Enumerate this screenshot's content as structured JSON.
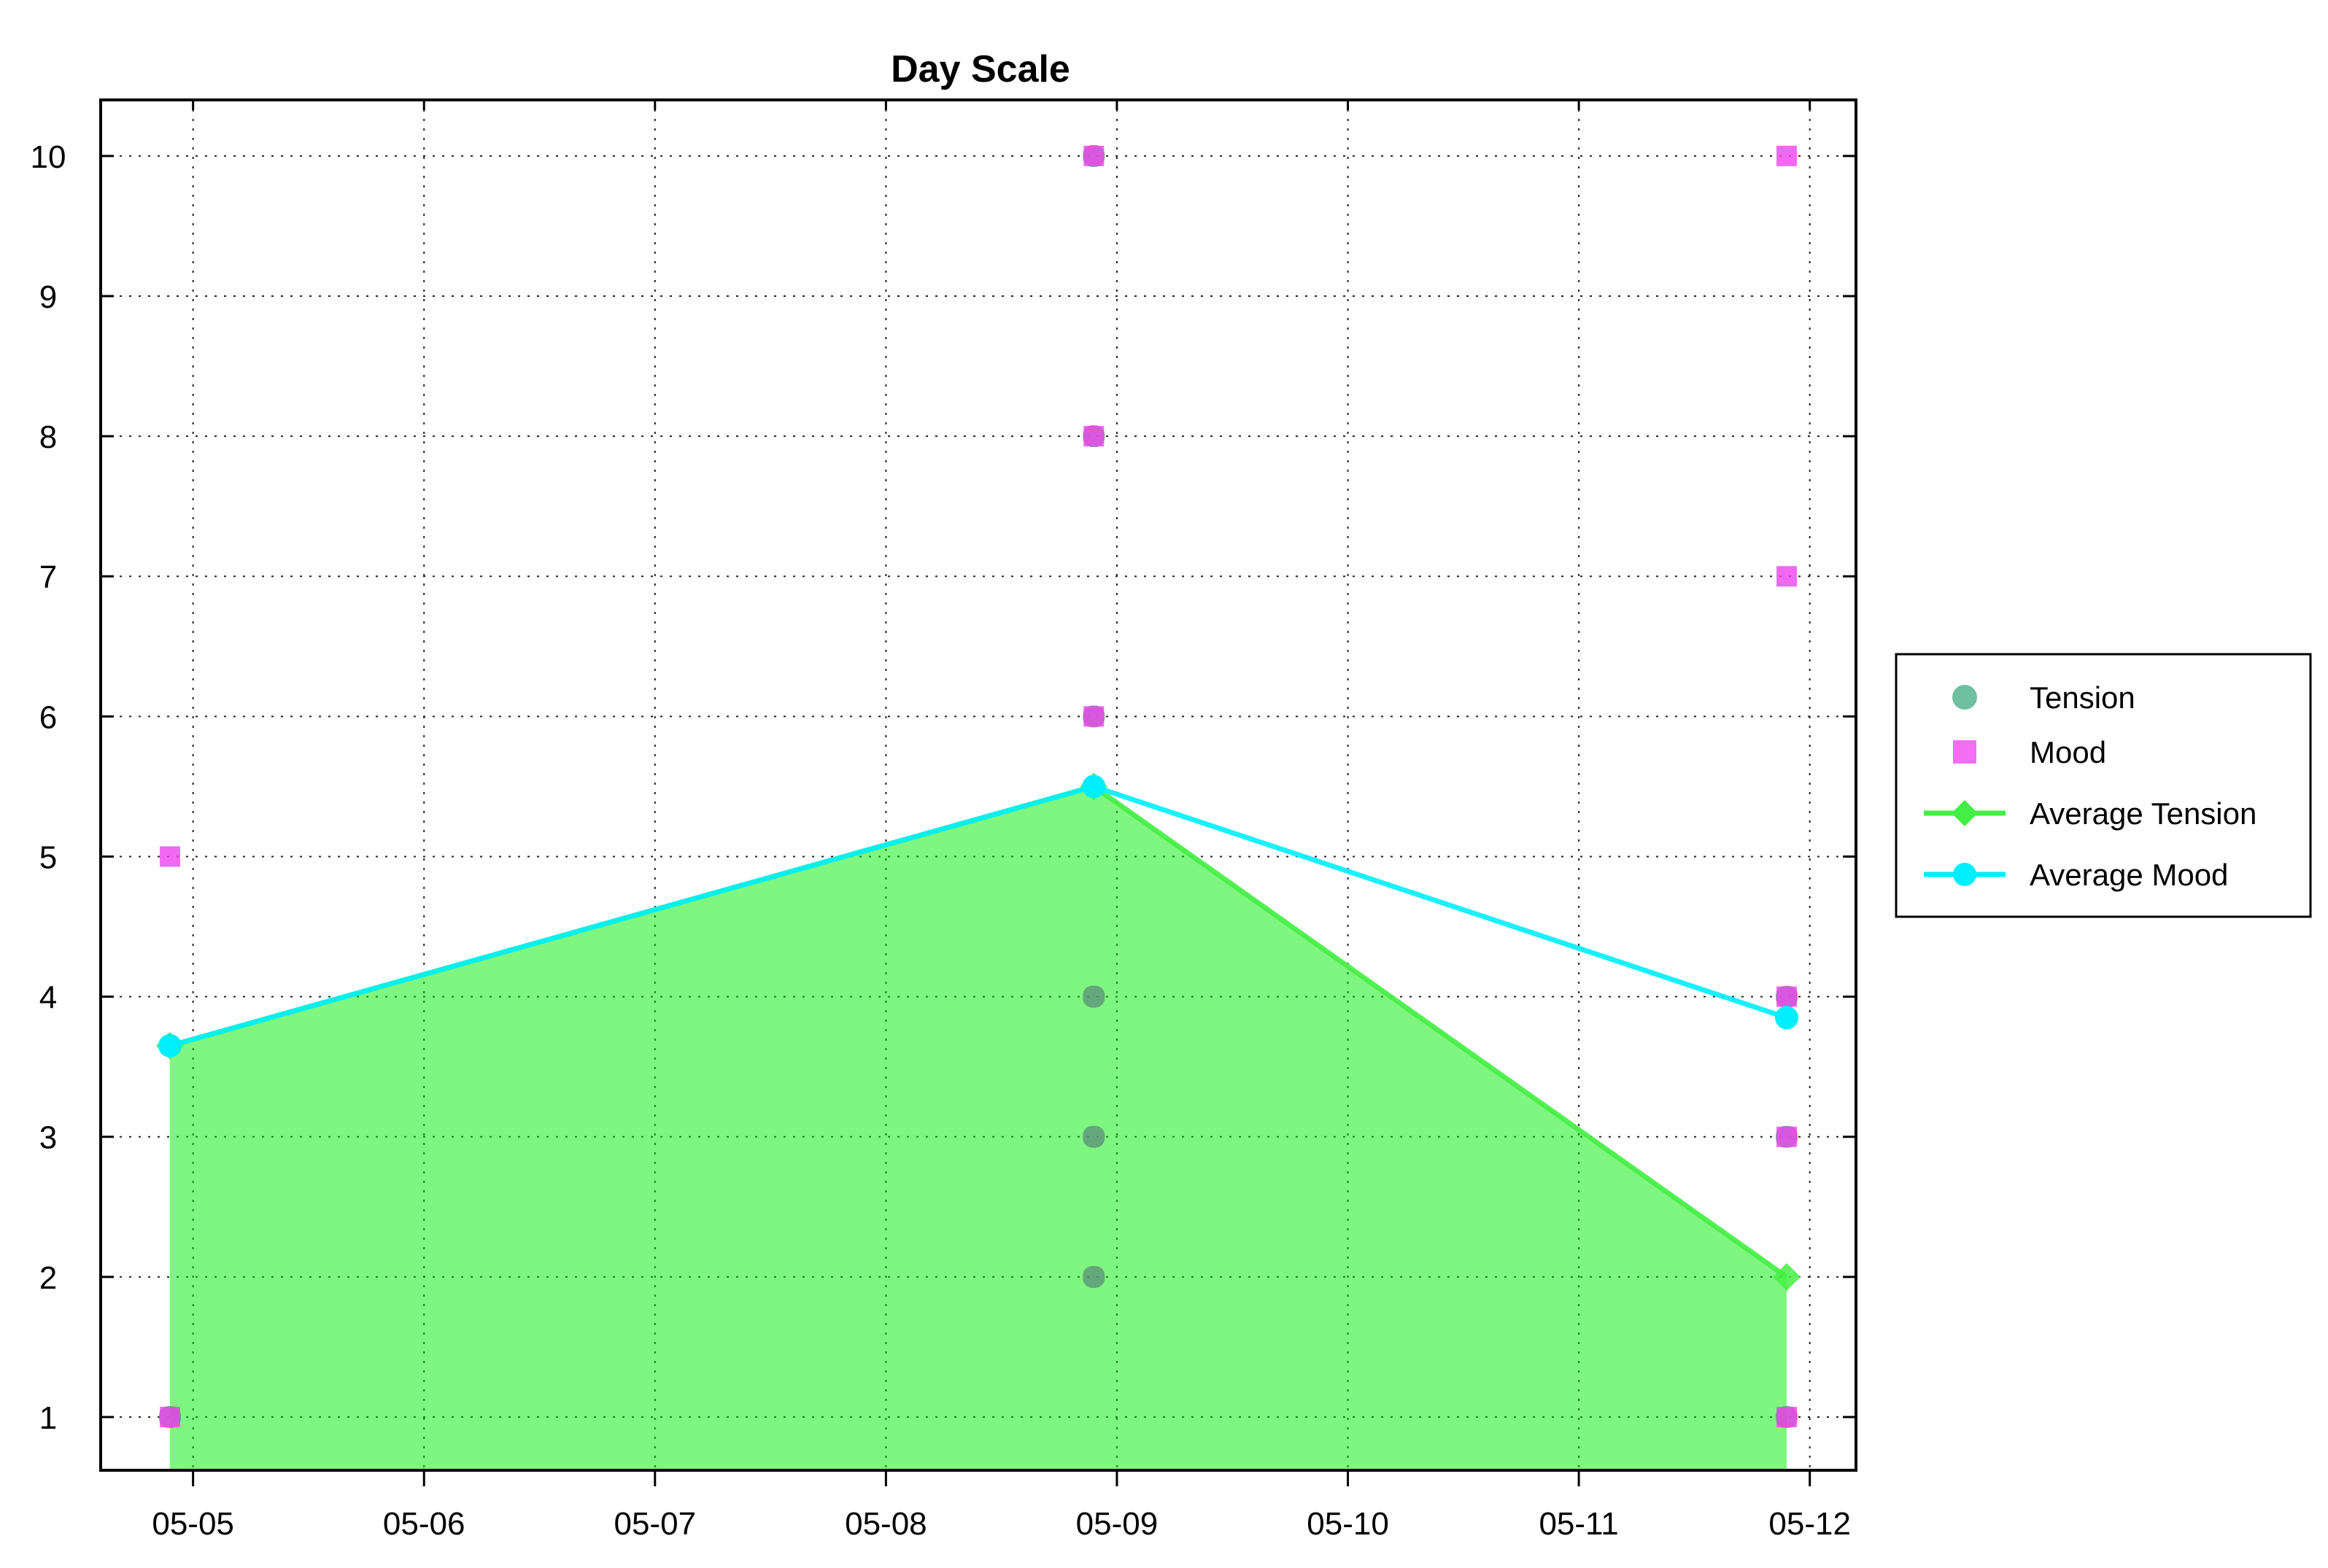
{
  "chart_data": {
    "type": "scatter",
    "title": "Day Scale",
    "xlabel": "",
    "ylabel": "",
    "x_ticks": [
      "05-05",
      "05-06",
      "05-07",
      "05-08",
      "05-09",
      "05-10",
      "05-11",
      "05-12"
    ],
    "x_tick_dates": [
      "05-05",
      "05-06",
      "05-07",
      "05-08",
      "05-09",
      "05-10",
      "05-11",
      "05-12"
    ],
    "xlim": [
      "05-04.6",
      "05-12.2"
    ],
    "y_ticks": [
      1,
      2,
      3,
      4,
      5,
      6,
      7,
      8,
      9,
      10
    ],
    "ylim": [
      0.62,
      10.4
    ],
    "grid": true,
    "legend_position": "right",
    "series": [
      {
        "name": "Tension",
        "kind": "scatter",
        "marker": "circle",
        "color": "#5a8c78",
        "points": [
          {
            "x": "05-04.9",
            "y": 1
          },
          {
            "x": "05-08.9",
            "y": 2
          },
          {
            "x": "05-08.9",
            "y": 3
          },
          {
            "x": "05-08.9",
            "y": 4
          },
          {
            "x": "05-08.9",
            "y": 6
          },
          {
            "x": "05-08.9",
            "y": 8
          },
          {
            "x": "05-08.9",
            "y": 10
          },
          {
            "x": "05-11.9",
            "y": 1
          },
          {
            "x": "05-11.9",
            "y": 3
          },
          {
            "x": "05-11.9",
            "y": 4
          }
        ]
      },
      {
        "name": "Mood",
        "kind": "scatter",
        "marker": "square",
        "color": "#ee44ee",
        "points": [
          {
            "x": "05-04.9",
            "y": 1
          },
          {
            "x": "05-04.9",
            "y": 5
          },
          {
            "x": "05-08.9",
            "y": 6
          },
          {
            "x": "05-08.9",
            "y": 8
          },
          {
            "x": "05-08.9",
            "y": 10
          },
          {
            "x": "05-11.9",
            "y": 1
          },
          {
            "x": "05-11.9",
            "y": 3
          },
          {
            "x": "05-11.9",
            "y": 4
          },
          {
            "x": "05-11.9",
            "y": 7
          },
          {
            "x": "05-11.9",
            "y": 10
          }
        ]
      },
      {
        "name": "Average Tension",
        "kind": "area",
        "marker": "diamond",
        "color": "#44ee44",
        "points": [
          {
            "x": "05-04.9",
            "y": 3.65
          },
          {
            "x": "05-08.9",
            "y": 5.5
          },
          {
            "x": "05-11.9",
            "y": 2.0
          }
        ]
      },
      {
        "name": "Average Mood",
        "kind": "line",
        "marker": "circle",
        "color": "#00eeff",
        "points": [
          {
            "x": "05-04.9",
            "y": 3.65
          },
          {
            "x": "05-08.9",
            "y": 5.5
          },
          {
            "x": "05-11.9",
            "y": 3.85
          }
        ]
      }
    ]
  }
}
